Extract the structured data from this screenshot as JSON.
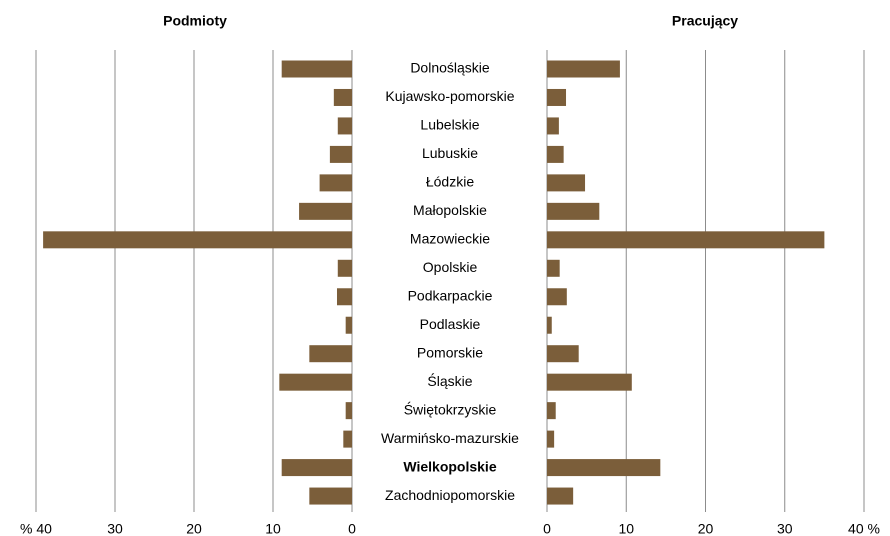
{
  "chart_data": [
    {
      "type": "bar",
      "orientation": "horizontal",
      "title": "Podmioty",
      "categories": [
        "Dolnośląskie",
        "Kujawsko-pomorskie",
        "Lubelskie",
        "Lubuskie",
        "Łódzkie",
        "Małopolskie",
        "Mazowieckie",
        "Opolskie",
        "Podkarpackie",
        "Podlaskie",
        "Pomorskie",
        "Śląskie",
        "Świętokrzyskie",
        "Warmińsko-mazurskie",
        "Wielkopolskie",
        "Zachodniopomorskie"
      ],
      "highlight": 14,
      "values": [
        8.9,
        2.3,
        1.8,
        2.8,
        4.1,
        6.7,
        39.1,
        1.8,
        1.9,
        0.8,
        5.4,
        9.2,
        0.8,
        1.1,
        8.9,
        5.4
      ],
      "color": "#7b5e3a",
      "xlim": [
        40,
        0
      ],
      "xticks": [
        {
          "value": 40,
          "label": "% 40"
        },
        30,
        20,
        10,
        0
      ],
      "grid": true
    },
    {
      "type": "bar",
      "orientation": "horizontal",
      "title": "Pracujący",
      "values": [
        9.2,
        2.4,
        1.5,
        2.1,
        4.8,
        6.6,
        35.0,
        1.6,
        2.5,
        0.6,
        4.0,
        10.7,
        1.1,
        0.9,
        14.3,
        3.3
      ],
      "color": "#7b5e3a",
      "xlim": [
        0,
        40
      ],
      "xticks": [
        0,
        10,
        20,
        30,
        {
          "value": 40,
          "label": "40 %"
        }
      ],
      "grid": true
    }
  ]
}
